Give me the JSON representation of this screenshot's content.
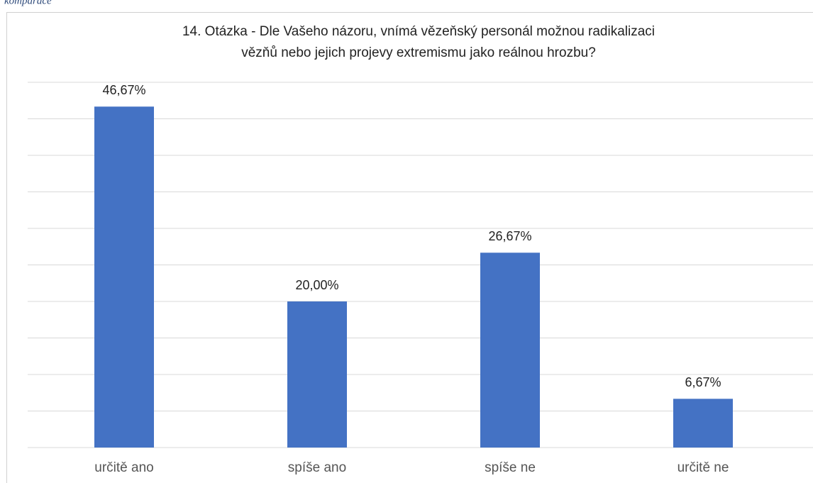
{
  "caption": "komparace",
  "chart_data": {
    "type": "bar",
    "title": [
      "14. Otázka - Dle Vašeho názoru, vnímá vězeňský personál možnou radikalizaci",
      "vězňů nebo jejich projevy extremismu jako reálnou hrozbu?"
    ],
    "categories": [
      "určitě ano",
      "spíše ano",
      "spíše ne",
      "určitě ne"
    ],
    "values": [
      46.67,
      20.0,
      26.67,
      6.67
    ],
    "value_labels": [
      "46,67%",
      "20,00%",
      "26,67%",
      "6,67%"
    ],
    "color": "#4472c4",
    "ylim": [
      0,
      50
    ],
    "yticks": [
      0,
      5,
      10,
      15,
      20,
      25,
      30,
      35,
      40,
      45,
      50
    ],
    "grid": true
  }
}
